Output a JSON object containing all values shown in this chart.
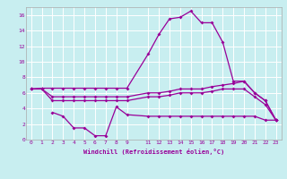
{
  "xlabel": "Windchill (Refroidissement éolien,°C)",
  "background_color": "#c8eef0",
  "line_color": "#990099",
  "grid_color": "#ffffff",
  "xlim": [
    -0.5,
    23.5
  ],
  "ylim": [
    0,
    17
  ],
  "xticks": [
    0,
    1,
    2,
    3,
    4,
    5,
    6,
    7,
    8,
    9,
    11,
    12,
    13,
    14,
    15,
    16,
    17,
    18,
    19,
    20,
    21,
    22,
    23
  ],
  "yticks": [
    0,
    2,
    4,
    6,
    8,
    10,
    12,
    14,
    16
  ],
  "line1_x": [
    0,
    1,
    2,
    3,
    4,
    5,
    6,
    7,
    8,
    9,
    11,
    12,
    13,
    14,
    15,
    16,
    17,
    18,
    19,
    20,
    21,
    22,
    23
  ],
  "line1_y": [
    6.5,
    6.6,
    6.6,
    6.6,
    6.6,
    6.6,
    6.6,
    6.6,
    6.6,
    6.6,
    11.0,
    13.5,
    15.5,
    15.7,
    16.5,
    15.0,
    15.0,
    12.5,
    7.5,
    7.5,
    6.0,
    5.0,
    2.5
  ],
  "line2_x": [
    0,
    1,
    2,
    3,
    4,
    5,
    6,
    7,
    8,
    9,
    11,
    12,
    13,
    14,
    15,
    16,
    17,
    18,
    19,
    20,
    21,
    22,
    23
  ],
  "line2_y": [
    6.5,
    6.5,
    5.5,
    5.5,
    5.5,
    5.5,
    5.5,
    5.5,
    5.5,
    5.5,
    6.0,
    6.0,
    6.2,
    6.5,
    6.5,
    6.5,
    6.8,
    7.0,
    7.2,
    7.5,
    6.0,
    5.0,
    2.5
  ],
  "line3_x": [
    0,
    1,
    2,
    3,
    4,
    5,
    6,
    7,
    8,
    9,
    11,
    12,
    13,
    14,
    15,
    16,
    17,
    18,
    19,
    20,
    21,
    22,
    23
  ],
  "line3_y": [
    6.5,
    6.5,
    5.0,
    5.0,
    5.0,
    5.0,
    5.0,
    5.0,
    5.0,
    5.0,
    5.5,
    5.5,
    5.7,
    6.0,
    6.0,
    6.0,
    6.2,
    6.5,
    6.5,
    6.5,
    5.5,
    4.5,
    2.5
  ],
  "line4_x": [
    2,
    3,
    4,
    5,
    6,
    7,
    8,
    9,
    11,
    12,
    13,
    14,
    15,
    16,
    17,
    18,
    19,
    20,
    21,
    22,
    23
  ],
  "line4_y": [
    3.5,
    3.0,
    1.5,
    1.5,
    0.5,
    0.5,
    4.2,
    3.2,
    3.0,
    3.0,
    3.0,
    3.0,
    3.0,
    3.0,
    3.0,
    3.0,
    3.0,
    3.0,
    3.0,
    2.5,
    2.5
  ]
}
